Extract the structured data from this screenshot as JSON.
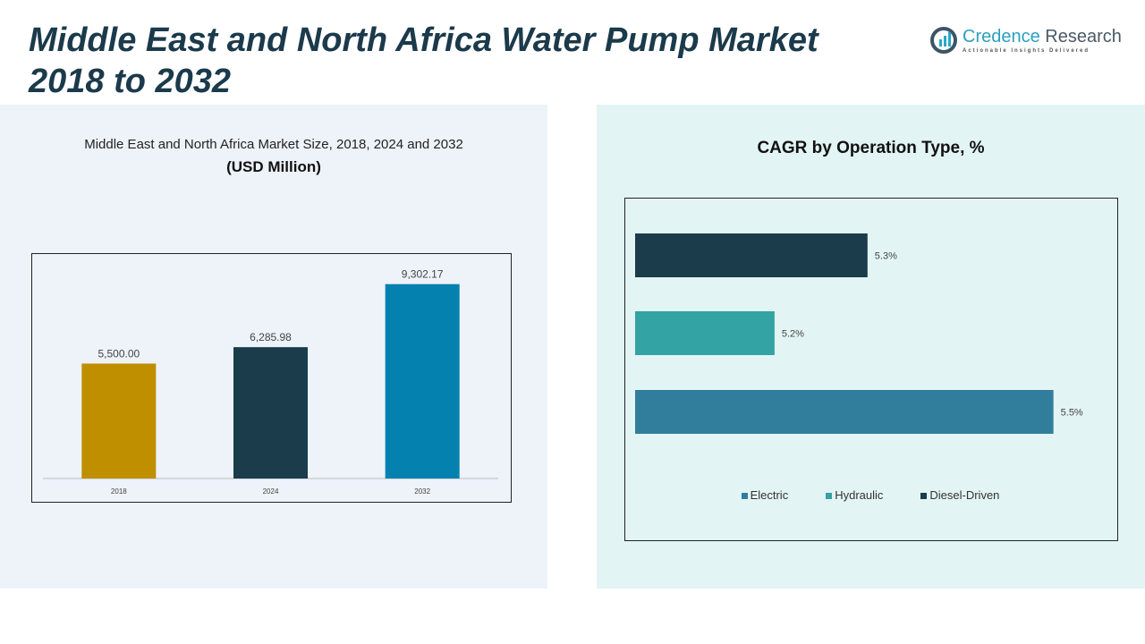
{
  "title": "Middle East and North Africa Water Pump Market 2018 to 2032",
  "logo": {
    "name_a": "Credence",
    "name_b": " Research",
    "tagline": "Actionable Insights Delivered"
  },
  "chart_data": [
    {
      "type": "bar",
      "title": "Middle East and North Africa Market Size, 2018, 2024 and 2032",
      "subtitle": "(USD Million)",
      "categories": [
        "2018",
        "2024",
        "2032"
      ],
      "values": [
        5500.0,
        6285.98,
        9302.17
      ],
      "labels": [
        "5,500.00",
        "6,285.98",
        "9,302.17"
      ],
      "colors": [
        "#bf8f00",
        "#1a3c4b",
        "#0581b0"
      ],
      "ylim": [
        0,
        10700
      ],
      "grid": false
    },
    {
      "type": "bar",
      "orientation": "horizontal",
      "title": "CAGR by Operation Type, %",
      "categories": [
        "Diesel-Driven",
        "Hydraulic",
        "Electric"
      ],
      "values": [
        5.3,
        5.2,
        5.5
      ],
      "labels": [
        "5.3%",
        "5.2%",
        "5.5%"
      ],
      "colors": [
        "#1a3c4b",
        "#33a3a3",
        "#317e9c"
      ],
      "xlim": [
        5.05,
        5.56
      ],
      "legend": [
        "Electric",
        "Hydraulic",
        "Diesel-Driven"
      ],
      "legend_colors": [
        "#317e9c",
        "#33a3a3",
        "#1a3c4b"
      ],
      "legend_position": "bottom",
      "grid": false
    }
  ]
}
